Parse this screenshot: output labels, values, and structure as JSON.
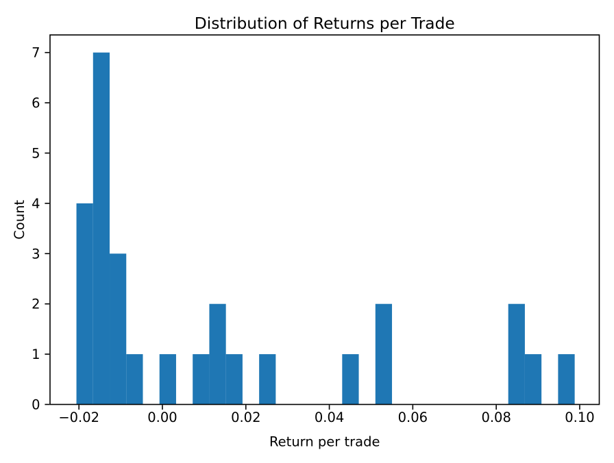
{
  "figure": {
    "background": "#ffffff"
  },
  "chart_data": {
    "type": "bar",
    "subtype": "histogram",
    "title": "Distribution of Returns per Trade",
    "xlabel": "Return per trade",
    "ylabel": "Count",
    "bar_color": "#1f77b4",
    "axis_color": "#000000",
    "grid": false,
    "legend": null,
    "bins": {
      "start": -0.0206,
      "width": 0.00398,
      "num": 30
    },
    "counts": [
      4,
      7,
      3,
      1,
      0,
      1,
      0,
      1,
      2,
      1,
      0,
      1,
      0,
      0,
      0,
      0,
      1,
      0,
      2,
      0,
      0,
      0,
      0,
      0,
      0,
      0,
      2,
      1,
      0,
      1
    ],
    "total_trades": 28,
    "xlim": [
      -0.02693,
      0.10469
    ],
    "ylim": [
      0,
      7.35
    ],
    "xticks": {
      "values": [
        -0.02,
        0.0,
        0.02,
        0.04,
        0.06,
        0.08,
        0.1
      ],
      "labels": [
        "−0.02",
        "0.00",
        "0.02",
        "0.04",
        "0.06",
        "0.08",
        "0.10"
      ]
    },
    "yticks": {
      "values": [
        0,
        1,
        2,
        3,
        4,
        5,
        6,
        7
      ],
      "labels": [
        "0",
        "1",
        "2",
        "3",
        "4",
        "5",
        "6",
        "7"
      ]
    }
  }
}
